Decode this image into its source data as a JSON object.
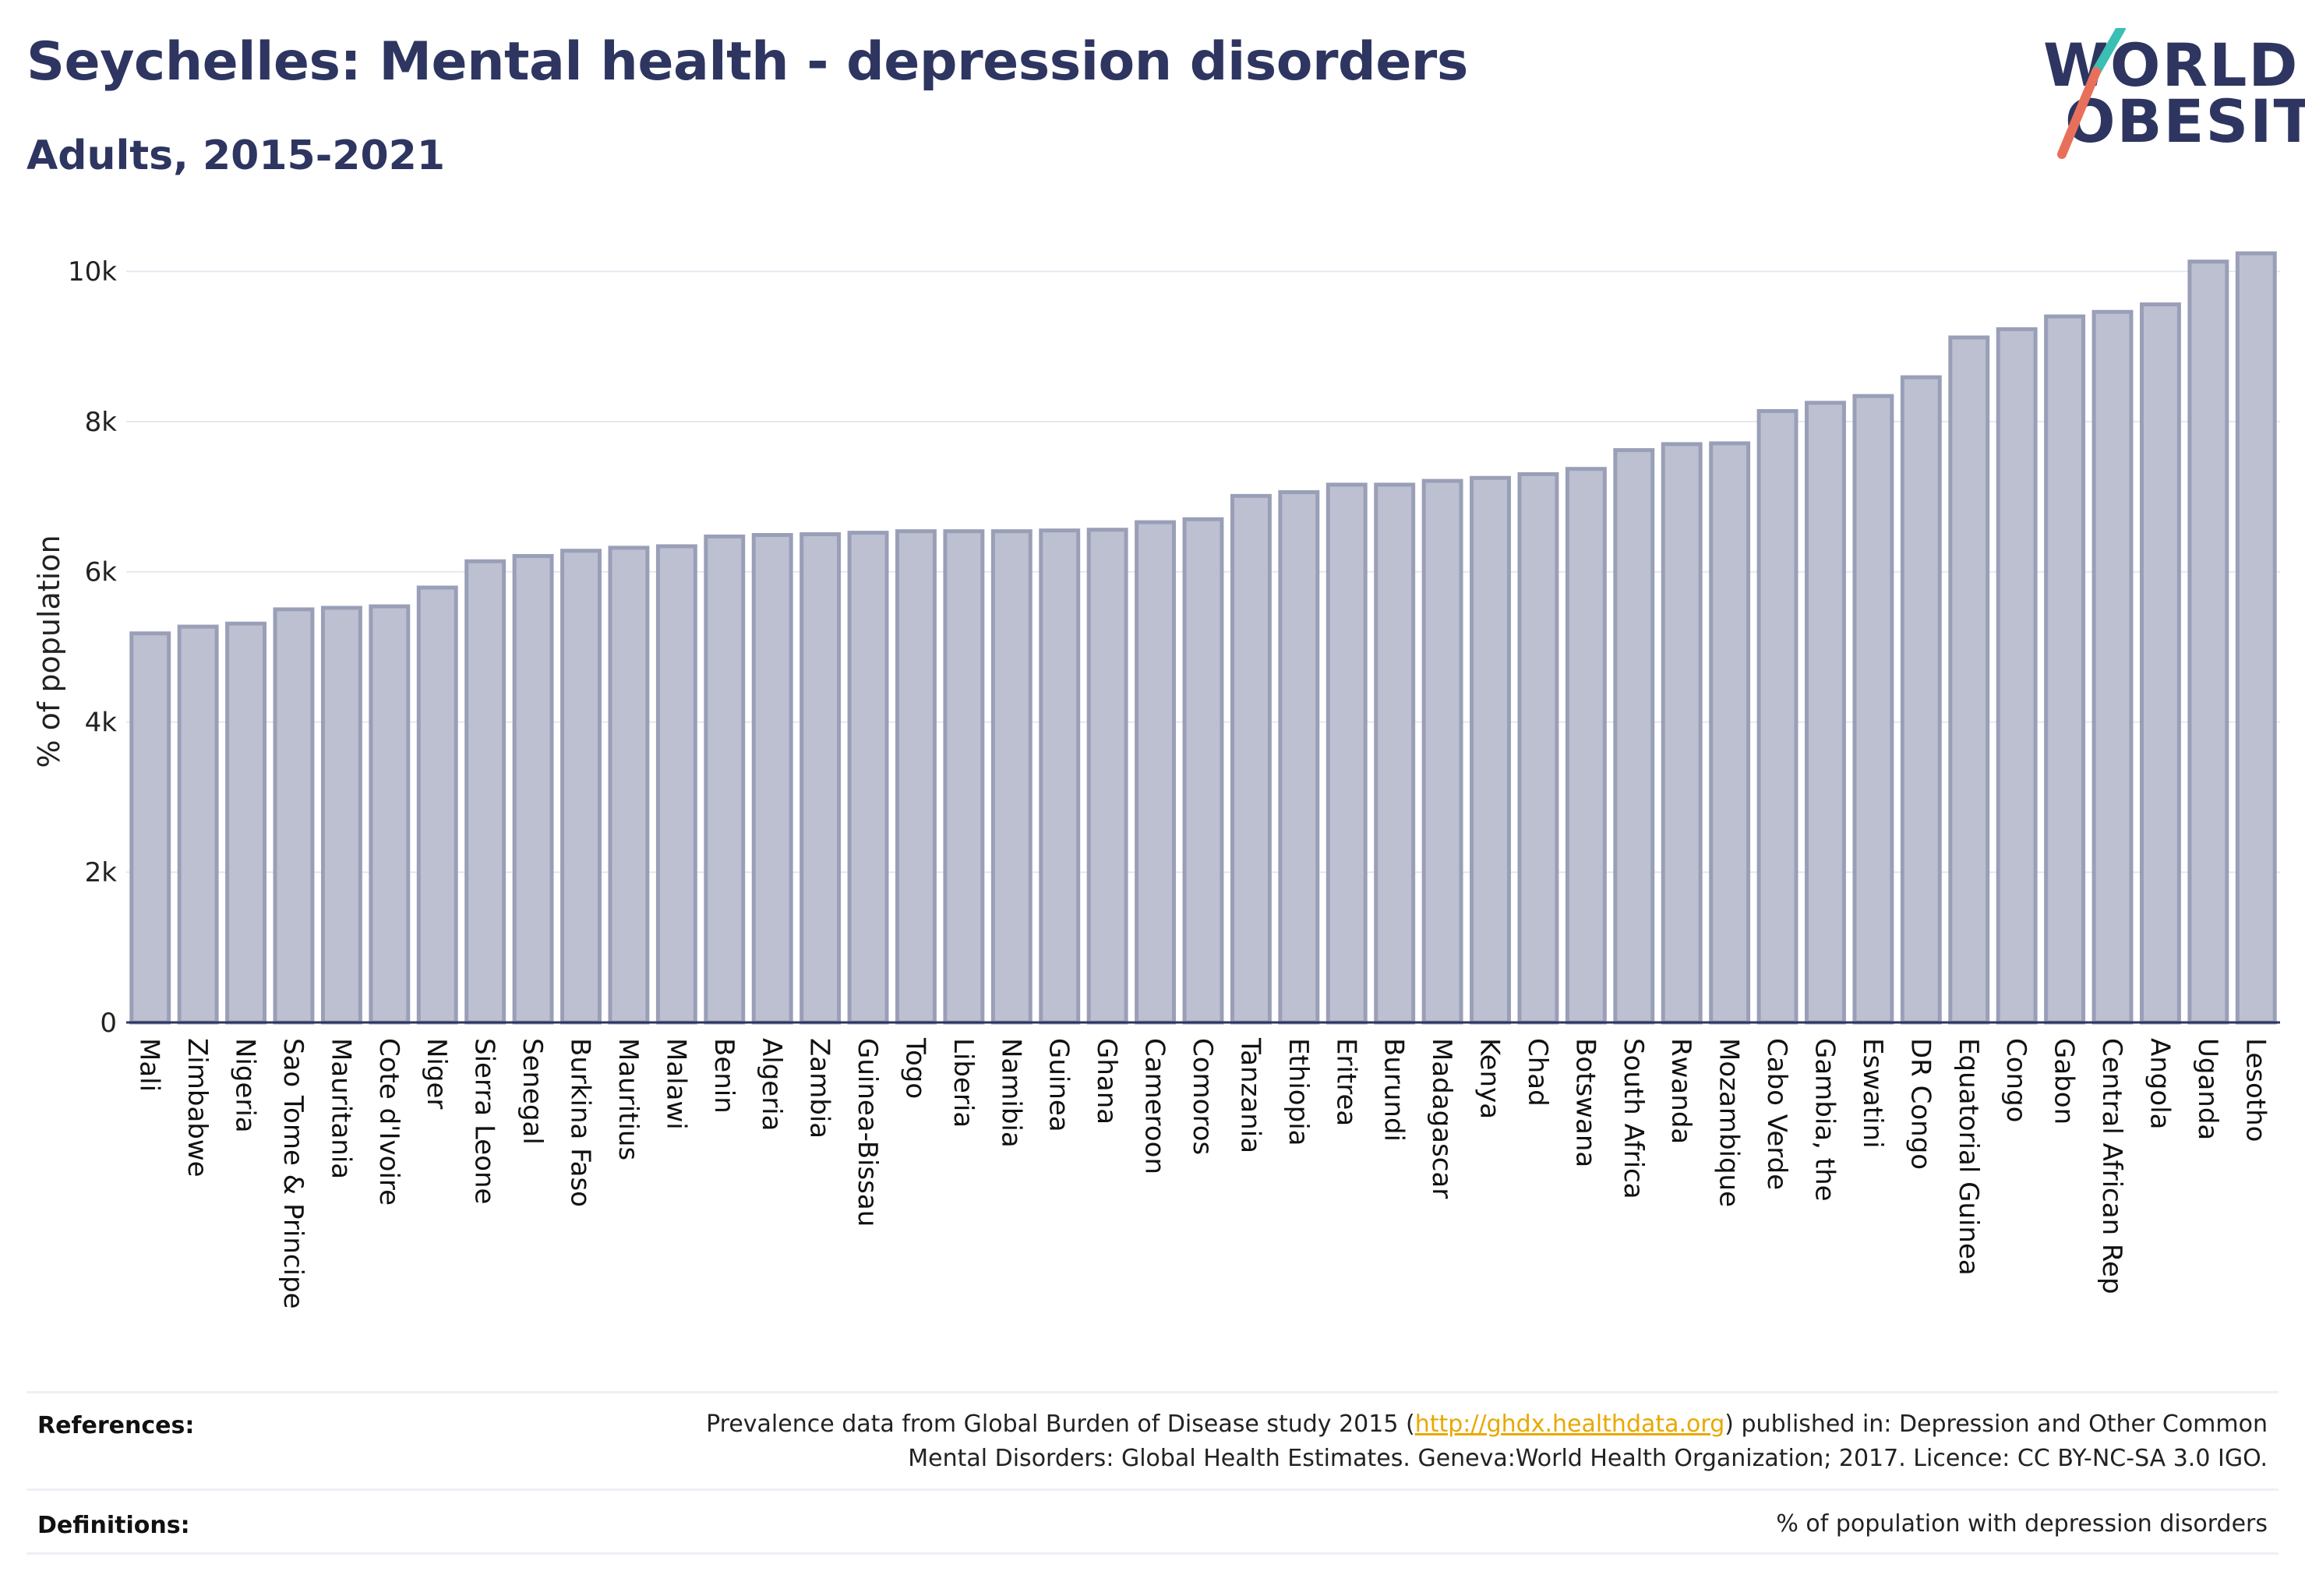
{
  "header": {
    "title": "Seychelles: Mental health - depression disorders",
    "subtitle": "Adults, 2015-2021"
  },
  "logo": {
    "line1": "WORLD",
    "line2": "OBESITY",
    "colors": {
      "text": "#2d3560",
      "slash_top": "#3bbfb5",
      "slash_bottom": "#e8705a"
    }
  },
  "chart_data": {
    "type": "bar",
    "ylabel": "% of population",
    "ylim": [
      0,
      10500
    ],
    "yticks": [
      0,
      2000,
      4000,
      6000,
      8000,
      10000
    ],
    "ytick_labels": [
      "0",
      "2k",
      "4k",
      "6k",
      "8k",
      "10k"
    ],
    "grid": true,
    "bar_color": "#bcc0d0",
    "bar_edge_color": "#9a9fb8",
    "categories": [
      "Mali",
      "Zimbabwe",
      "Nigeria",
      "Sao Tome & Principe",
      "Mauritania",
      "Cote d'Ivoire",
      "Niger",
      "Sierra Leone",
      "Senegal",
      "Burkina Faso",
      "Mauritius",
      "Malawi",
      "Benin",
      "Algeria",
      "Zambia",
      "Guinea-Bissau",
      "Togo",
      "Liberia",
      "Namibia",
      "Guinea",
      "Ghana",
      "Cameroon",
      "Comoros",
      "Tanzania",
      "Ethiopia",
      "Eritrea",
      "Burundi",
      "Madagascar",
      "Kenya",
      "Chad",
      "Botswana",
      "South Africa",
      "Rwanda",
      "Mozambique",
      "Cabo Verde",
      "Gambia, the",
      "Eswatini",
      "DR Congo",
      "Equatorial Guinea",
      "Congo",
      "Gabon",
      "Central African Rep",
      "Angola",
      "Uganda",
      "Lesotho"
    ],
    "values": [
      5180,
      5270,
      5310,
      5500,
      5520,
      5540,
      5790,
      6140,
      6210,
      6280,
      6320,
      6340,
      6470,
      6490,
      6500,
      6520,
      6540,
      6540,
      6540,
      6550,
      6560,
      6660,
      6700,
      7010,
      7060,
      7160,
      7160,
      7210,
      7250,
      7300,
      7370,
      7620,
      7700,
      7710,
      8140,
      8250,
      8340,
      8590,
      9120,
      9230,
      9400,
      9460,
      9560,
      10130,
      10240
    ]
  },
  "footer": {
    "references_label": "References:",
    "references_line1_pre": "Prevalence data from Global Burden of Disease study 2015 (",
    "references_link": "http://ghdx.healthdata.org",
    "references_line1_post": ") published in: Depression and Other Common",
    "references_line2": "Mental Disorders: Global Health Estimates. Geneva:World Health Organization; 2017. Licence: CC BY-NC-SA 3.0 IGO.",
    "definitions_label": "Definitions:",
    "definitions_text": "% of population with depression disorders"
  }
}
